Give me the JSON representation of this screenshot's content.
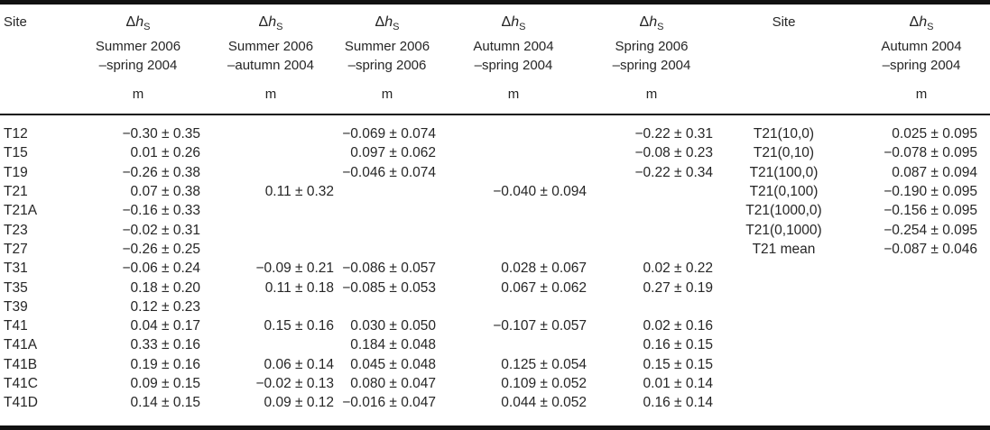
{
  "colors": {
    "text": "#262626",
    "rule": "#111111",
    "background": "#ffffff"
  },
  "table": {
    "header": {
      "site_left": "Site",
      "site_right": "Site",
      "delta": {
        "sym": "Δ",
        "var": "h",
        "sub": "S"
      },
      "unit": "m",
      "value_columns": [
        {
          "line1": "Summer 2006",
          "line2": "–spring 2004"
        },
        {
          "line1": "Summer 2006",
          "line2": "–autumn 2004"
        },
        {
          "line1": "Summer 2006",
          "line2": "–spring 2006"
        },
        {
          "line1": "Autumn 2004",
          "line2": "–spring 2004"
        },
        {
          "line1": "Spring 2006",
          "line2": "–spring 2004"
        },
        {
          "line1": "Autumn 2004",
          "line2": "–spring 2004"
        }
      ]
    },
    "rows": [
      {
        "site": "T12",
        "c1": "−0.30 ± 0.35",
        "c2": "",
        "c3": "−0.069 ± 0.074",
        "c4": "",
        "c5": "−0.22 ± 0.31",
        "site2": "T21(10,0)",
        "c6": "0.025 ± 0.095"
      },
      {
        "site": "T15",
        "c1": "0.01 ± 0.26",
        "c2": "",
        "c3": "0.097 ± 0.062",
        "c4": "",
        "c5": "−0.08 ± 0.23",
        "site2": "T21(0,10)",
        "c6": "−0.078 ± 0.095"
      },
      {
        "site": "T19",
        "c1": "−0.26 ± 0.38",
        "c2": "",
        "c3": "−0.046 ± 0.074",
        "c4": "",
        "c5": "−0.22 ± 0.34",
        "site2": "T21(100,0)",
        "c6": "0.087 ± 0.094"
      },
      {
        "site": "T21",
        "c1": "0.07 ± 0.38",
        "c2": "0.11 ± 0.32",
        "c3": "",
        "c4": "−0.040 ± 0.094",
        "c5": "",
        "site2": "T21(0,100)",
        "c6": "−0.190 ± 0.095"
      },
      {
        "site": "T21A",
        "c1": "−0.16 ± 0.33",
        "c2": "",
        "c3": "",
        "c4": "",
        "c5": "",
        "site2": "T21(1000,0)",
        "c6": "−0.156 ± 0.095"
      },
      {
        "site": "T23",
        "c1": "−0.02 ± 0.31",
        "c2": "",
        "c3": "",
        "c4": "",
        "c5": "",
        "site2": "T21(0,1000)",
        "c6": "−0.254 ± 0.095"
      },
      {
        "site": "T27",
        "c1": "−0.26 ± 0.25",
        "c2": "",
        "c3": "",
        "c4": "",
        "c5": "",
        "site2": "T21 mean",
        "c6": "−0.087 ± 0.046"
      },
      {
        "site": "T31",
        "c1": "−0.06 ± 0.24",
        "c2": "−0.09 ± 0.21",
        "c3": "−0.086 ± 0.057",
        "c4": "0.028 ± 0.067",
        "c5": "0.02 ± 0.22",
        "site2": "",
        "c6": ""
      },
      {
        "site": "T35",
        "c1": "0.18 ± 0.20",
        "c2": "0.11 ± 0.18",
        "c3": "−0.085 ± 0.053",
        "c4": "0.067 ± 0.062",
        "c5": "0.27 ± 0.19",
        "site2": "",
        "c6": ""
      },
      {
        "site": "T39",
        "c1": "0.12 ± 0.23",
        "c2": "",
        "c3": "",
        "c4": "",
        "c5": "",
        "site2": "",
        "c6": ""
      },
      {
        "site": "T41",
        "c1": "0.04 ± 0.17",
        "c2": "0.15 ± 0.16",
        "c3": "0.030 ± 0.050",
        "c4": "−0.107 ± 0.057",
        "c5": "0.02 ± 0.16",
        "site2": "",
        "c6": ""
      },
      {
        "site": "T41A",
        "c1": "0.33 ± 0.16",
        "c2": "",
        "c3": "0.184 ± 0.048",
        "c4": "",
        "c5": "0.16 ± 0.15",
        "site2": "",
        "c6": ""
      },
      {
        "site": "T41B",
        "c1": "0.19 ± 0.16",
        "c2": "0.06 ± 0.14",
        "c3": "0.045 ± 0.048",
        "c4": "0.125 ± 0.054",
        "c5": "0.15 ± 0.15",
        "site2": "",
        "c6": ""
      },
      {
        "site": "T41C",
        "c1": "0.09 ± 0.15",
        "c2": "−0.02 ± 0.13",
        "c3": "0.080 ± 0.047",
        "c4": "0.109 ± 0.052",
        "c5": "0.01 ± 0.14",
        "site2": "",
        "c6": ""
      },
      {
        "site": "T41D",
        "c1": "0.14 ± 0.15",
        "c2": "0.09 ± 0.12",
        "c3": "−0.016 ± 0.047",
        "c4": "0.044 ± 0.052",
        "c5": "0.16 ± 0.14",
        "site2": "",
        "c6": ""
      }
    ]
  }
}
